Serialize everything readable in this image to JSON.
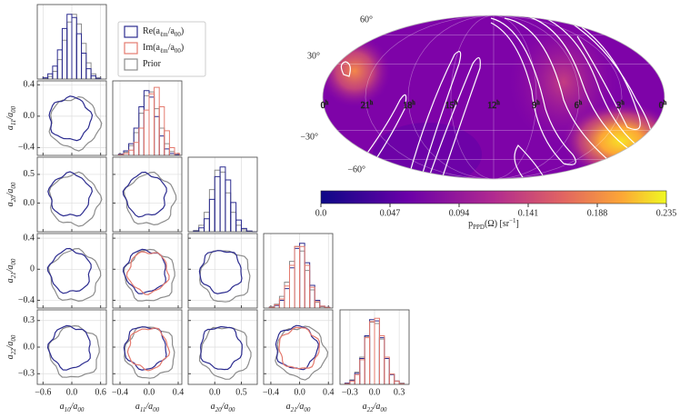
{
  "chart_data": [
    {
      "type": "corner",
      "series": [
        {
          "name": "Re(aℓm/a00)",
          "color": "#2b2b8f"
        },
        {
          "name": "Im(aℓm/a00)",
          "color": "#e47a6e"
        },
        {
          "name": "Prior",
          "color": "#8c8c8c"
        }
      ],
      "variables": [
        {
          "label": "a10/a00",
          "xlim": [
            -0.72,
            0.72
          ],
          "xticks": [
            {
              "value": -0.6,
              "label": "−0.6"
            },
            {
              "value": 0,
              "label": "0.0"
            },
            {
              "value": 0.6,
              "label": "0.6"
            }
          ]
        },
        {
          "label": "a11/a00",
          "xlim": [
            -0.5,
            0.45
          ],
          "xticks": [
            {
              "value": -0.4,
              "label": "−0.4"
            },
            {
              "value": 0,
              "label": "0.0"
            },
            0.4
          ],
          "yticks": [
            0.4,
            {
              "value": 0,
              "label": "0.0"
            },
            {
              "value": -0.4,
              "label": "−0.4"
            }
          ]
        },
        {
          "label": "a20/a00",
          "xlim": [
            -0.5,
            0.8
          ],
          "xticks": [
            {
              "value": 0,
              "label": "0.0"
            },
            0.5
          ],
          "yticks": [
            0.5,
            {
              "value": 0,
              "label": "0.0"
            }
          ]
        },
        {
          "label": "a21/a00",
          "xlim": [
            -0.5,
            0.46
          ],
          "xticks": [
            {
              "value": -0.4,
              "label": "−0.4"
            },
            {
              "value": 0,
              "label": "0.0"
            },
            0.4
          ],
          "yticks": [
            0.4,
            0,
            {
              "value": -0.4,
              "label": "−0.4"
            }
          ]
        },
        {
          "label": "a22/a00",
          "xlim": [
            -0.42,
            0.42
          ],
          "xticks": [
            {
              "value": -0.3,
              "label": "−0.3"
            },
            {
              "value": 0,
              "label": "0.0"
            },
            0.3
          ],
          "yticks": [
            0.3,
            {
              "value": 0,
              "label": "0.0"
            },
            {
              "value": -0.3,
              "label": "−0.3"
            }
          ]
        }
      ],
      "hist_ylim": [
        0,
        1.15
      ],
      "histograms": [
        {
          "bins": [
            -0.6,
            -0.5,
            -0.4,
            -0.3,
            -0.2,
            -0.1,
            0,
            0.1,
            0.2,
            0.3,
            0.4,
            0.5,
            0.6
          ],
          "re": [
            0.02,
            0.08,
            0.2,
            0.45,
            0.78,
            1.0,
            0.95,
            0.7,
            0.4,
            0.16,
            0.05,
            0.01
          ],
          "prior": [
            0.01,
            0.04,
            0.12,
            0.3,
            0.6,
            0.88,
            1.0,
            0.85,
            0.55,
            0.25,
            0.08,
            0.02
          ]
        },
        {
          "bins": [
            -0.42,
            -0.35,
            -0.28,
            -0.21,
            -0.14,
            -0.07,
            0,
            0.07,
            0.14,
            0.21,
            0.28,
            0.35,
            0.42
          ],
          "re": [
            0.02,
            0.07,
            0.18,
            0.42,
            0.75,
            1.0,
            0.9,
            0.6,
            0.3,
            0.1,
            0.03,
            0.01
          ],
          "im": [
            0.01,
            0.03,
            0.08,
            0.2,
            0.42,
            0.7,
            0.95,
            1.05,
            0.75,
            0.38,
            0.12,
            0.03
          ],
          "prior": [
            0.02,
            0.05,
            0.15,
            0.35,
            0.65,
            0.92,
            0.98,
            0.72,
            0.42,
            0.18,
            0.06,
            0.01
          ]
        },
        {
          "bins": [
            -0.4,
            -0.3,
            -0.2,
            -0.1,
            0,
            0.1,
            0.2,
            0.3,
            0.4,
            0.5,
            0.6,
            0.7,
            0.8
          ],
          "re": [
            0.01,
            0.06,
            0.2,
            0.5,
            0.85,
            1.0,
            0.8,
            0.45,
            0.18,
            0.05,
            0.01,
            0
          ],
          "prior": [
            0.02,
            0.1,
            0.3,
            0.65,
            0.95,
            0.92,
            0.6,
            0.3,
            0.1,
            0.03,
            0.01,
            0
          ]
        },
        {
          "bins": [
            -0.42,
            -0.35,
            -0.28,
            -0.21,
            -0.14,
            -0.07,
            0,
            0.07,
            0.14,
            0.21,
            0.28,
            0.35,
            0.42
          ],
          "re": [
            0.01,
            0.04,
            0.12,
            0.3,
            0.62,
            0.92,
            1.0,
            0.7,
            0.35,
            0.12,
            0.03,
            0.01
          ],
          "im": [
            0.01,
            0.05,
            0.14,
            0.34,
            0.66,
            0.95,
            0.95,
            0.66,
            0.32,
            0.1,
            0.03,
            0.01
          ],
          "prior": [
            0.02,
            0.06,
            0.18,
            0.4,
            0.72,
            0.95,
            0.88,
            0.58,
            0.28,
            0.09,
            0.02,
            0.01
          ]
        },
        {
          "bins": [
            -0.36,
            -0.3,
            -0.24,
            -0.18,
            -0.12,
            -0.06,
            0,
            0.06,
            0.12,
            0.18,
            0.24,
            0.3,
            0.36
          ],
          "re": [
            0.02,
            0.06,
            0.17,
            0.4,
            0.75,
            1.0,
            0.98,
            0.72,
            0.4,
            0.15,
            0.05,
            0.01
          ],
          "im": [
            0.01,
            0.05,
            0.15,
            0.38,
            0.72,
            0.97,
            1.02,
            0.75,
            0.42,
            0.16,
            0.05,
            0.01
          ],
          "prior": [
            0.02,
            0.07,
            0.19,
            0.42,
            0.74,
            0.96,
            0.94,
            0.7,
            0.4,
            0.16,
            0.05,
            0.02
          ]
        }
      ]
    },
    {
      "type": "skymap",
      "lat_labels": [
        "60°",
        "30°",
        "−30°",
        "−60°"
      ],
      "lon_labels": [
        "0h",
        "21h",
        "18h",
        "15h",
        "12h",
        "9h",
        "6h",
        "3h",
        "0h"
      ],
      "colorbar": {
        "label": "pPPD(Ω) [sr−1]",
        "lim": [
          0,
          0.235
        ],
        "ticks": [
          {
            "value": 0,
            "label": "0.0"
          },
          0.047,
          0.094,
          0.141,
          0.188,
          0.235
        ]
      }
    }
  ]
}
